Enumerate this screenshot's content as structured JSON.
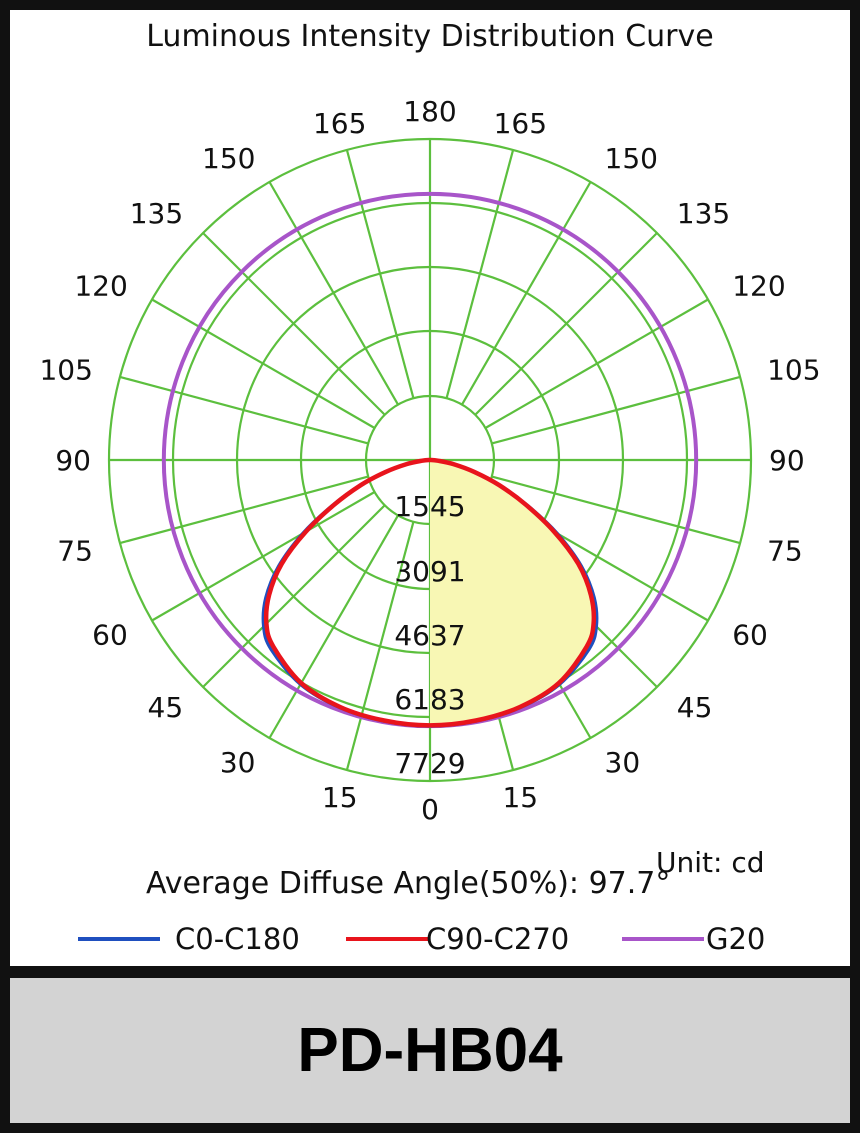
{
  "chart_data": {
    "type": "polar",
    "title": "Luminous Intensity Distribution Curve",
    "unit_label": "Unit: cd",
    "angle_labels_left": [
      "180",
      "165",
      "150",
      "135",
      "120",
      "105",
      "90",
      "75",
      "60",
      "45",
      "30",
      "15",
      "0"
    ],
    "angle_labels_right": [
      "165",
      "150",
      "135",
      "120",
      "105",
      "90",
      "75",
      "60",
      "45",
      "30",
      "15"
    ],
    "angles_deg": [
      0,
      15,
      30,
      45,
      60,
      75,
      90,
      105,
      120,
      135,
      150,
      165,
      180
    ],
    "radial_ticks": [
      1545,
      3091,
      4637,
      6183,
      7729
    ],
    "radial_tick_labels": [
      "1545",
      "3091",
      "4637",
      "6183",
      "7729"
    ],
    "r_max": 7729,
    "grid": true,
    "average_diffuse_angle_text": "Average Diffuse Angle(50%): 97.7°",
    "series": [
      {
        "name": "C0-C180",
        "color": "#1f4fbf",
        "angles_deg": [
          0,
          10,
          20,
          30,
          40,
          45,
          50,
          55,
          60,
          65,
          70,
          75,
          80,
          85,
          90
        ],
        "values": [
          6500,
          6480,
          6440,
          6330,
          6040,
          5750,
          5240,
          4520,
          3600,
          2650,
          1850,
          1150,
          600,
          200,
          0
        ]
      },
      {
        "name": "C90-C270",
        "color": "#e8141c",
        "angles_deg": [
          0,
          10,
          20,
          30,
          40,
          45,
          50,
          55,
          60,
          65,
          70,
          75,
          80,
          85,
          90
        ],
        "values": [
          6480,
          6460,
          6420,
          6290,
          5950,
          5650,
          5130,
          4420,
          3500,
          2580,
          1800,
          1120,
          580,
          190,
          0
        ]
      },
      {
        "name": "G20",
        "color": "#a855c9",
        "angles_deg": [
          0,
          180
        ],
        "values": [
          6500,
          6500
        ]
      }
    ],
    "legend_placement": "bottom"
  },
  "colors": {
    "grid": "#5cbf3e",
    "fill": "#f8f7b4",
    "frame": "#111111",
    "footer_bg": "#d3d3d3"
  },
  "footer": {
    "model": "PD-HB04"
  }
}
